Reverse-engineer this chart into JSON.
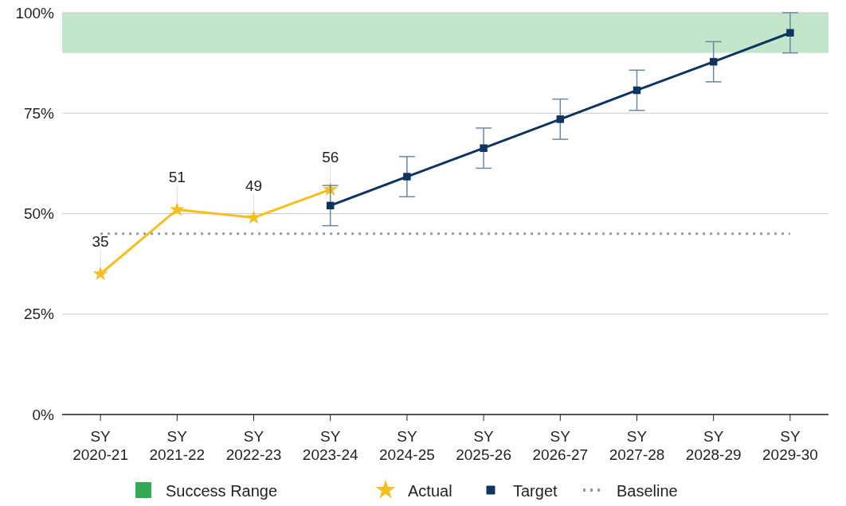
{
  "chart_data": {
    "type": "line",
    "categories": [
      "SY 2020-21",
      "SY 2021-22",
      "SY 2022-23",
      "SY 2023-24",
      "SY 2024-25",
      "SY 2025-26",
      "SY 2026-27",
      "SY 2027-28",
      "SY 2028-29",
      "SY 2029-30"
    ],
    "series": [
      {
        "name": "Actual",
        "color": "#f5bf1e",
        "marker": "star",
        "values": [
          35,
          51,
          49,
          56,
          null,
          null,
          null,
          null,
          null,
          null
        ],
        "value_labels": [
          "35",
          "51",
          "49",
          "56",
          null,
          null,
          null,
          null,
          null,
          null
        ]
      },
      {
        "name": "Target",
        "color": "#0d3560",
        "marker": "square",
        "values": [
          null,
          null,
          null,
          52,
          59.2,
          66.3,
          73.5,
          80.7,
          87.8,
          95
        ],
        "errors": [
          null,
          null,
          null,
          5,
          5,
          5,
          5,
          5,
          5,
          5
        ]
      }
    ],
    "ylim": [
      0,
      100
    ],
    "yticks": [
      {
        "value": 0,
        "label": "0%"
      },
      {
        "value": 25,
        "label": "25%"
      },
      {
        "value": 50,
        "label": "50%"
      },
      {
        "value": 75,
        "label": "75%"
      },
      {
        "value": 100,
        "label": "100%"
      }
    ],
    "bands": [
      {
        "axis": "y",
        "from": 90,
        "to": 100,
        "label": "Success Range",
        "color": "#34a853"
      }
    ],
    "ref_lines": [
      {
        "axis": "y",
        "value": 45,
        "label": "Baseline",
        "color": "#999999",
        "line_style": "dotted"
      }
    ],
    "grid": "y",
    "legend": "bottom",
    "line_style": "solid"
  }
}
